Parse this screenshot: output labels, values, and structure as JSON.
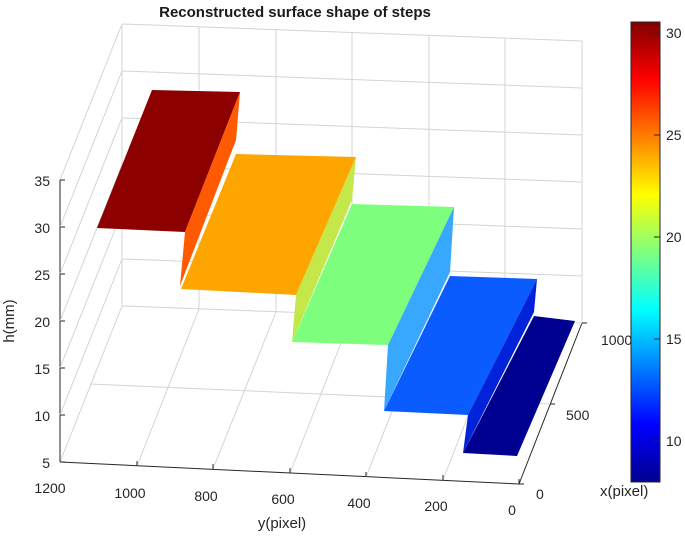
{
  "chart_data": {
    "type": "surface",
    "title": "Reconstructed surface shape of steps",
    "xlabel": "y(pixel)",
    "ylabel": "x(pixel)",
    "zlabel": "h(mm)",
    "ylim": [
      0,
      1000
    ],
    "zlim": [
      5,
      35
    ],
    "y_ticks": [
      1200,
      1000,
      800,
      600,
      400,
      200,
      0
    ],
    "x_ticks": [
      0,
      500,
      1000
    ],
    "z_ticks": [
      5,
      10,
      15,
      20,
      25,
      30,
      35
    ],
    "grid": true,
    "colormap": "jet",
    "colorbar": {
      "min": 8,
      "max": 30.5,
      "ticks": [
        10,
        15,
        20,
        25,
        30
      ],
      "placement": "right"
    },
    "steps": [
      {
        "y_range": [
          1050,
          850
        ],
        "height": 30
      },
      {
        "y_range": [
          850,
          600
        ],
        "height": 23.5
      },
      {
        "y_range": [
          600,
          380
        ],
        "height": 18.5
      },
      {
        "y_range": [
          380,
          220
        ],
        "height": 13
      },
      {
        "y_range": [
          220,
          50
        ],
        "height": 8
      }
    ]
  }
}
